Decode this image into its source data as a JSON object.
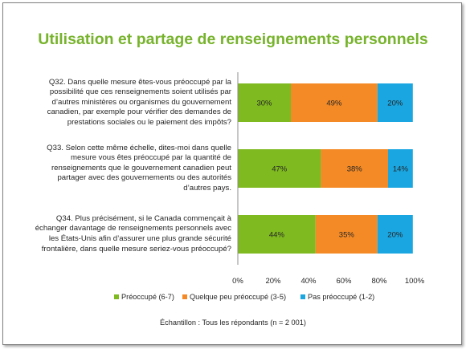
{
  "title": "Utilisation et partage de renseignements personnels",
  "footer": "Échantillon : Tous les répondants (n = 2 001)",
  "colors": {
    "preoccupe": "#7fba20",
    "quelque": "#f48a26",
    "pas": "#1aa6e1",
    "title": "#77b32c"
  },
  "chart_data": {
    "type": "bar",
    "orientation": "horizontal",
    "stacked": true,
    "categories": [
      "Q32. Dans quelle mesure êtes-vous préoccupé par la possibilité que ces renseignements soient utilisés par d’autres ministères ou organismes du gouvernement canadien, par exemple pour vérifier des demandes de prestations sociales ou le paiement des impôts?",
      "Q33. Selon cette même échelle, dites-moi dans quelle mesure vous êtes préoccupé par la quantité de renseignements que le gouvernement canadien peut partager avec des gouvernements ou des autorités d’autres pays.",
      "Q34. Plus précisément, si le Canada commençait à échanger davantage de renseignements personnels avec les États-Unis afin d’assurer une plus grande sécurité frontalière, dans quelle mesure seriez-vous préoccupé?"
    ],
    "question_lines": [
      [
        "Q32. Dans quelle mesure êtes-vous préoccupé par la",
        "possibilité que ces renseignements soient utilisés par",
        "d’autres ministères ou organismes du gouvernement",
        "canadien, par exemple pour vérifier des demandes de",
        "prestations sociales ou le paiement des impôts?"
      ],
      [
        "Q33. Selon cette même échelle, dites-moi dans quelle",
        "mesure vous êtes préoccupé par la quantité de",
        "renseignements que le gouvernement canadien peut",
        "partager avec des gouvernements ou des autorités",
        "d’autres pays."
      ],
      [
        "Q34. Plus précisément, si le Canada commençait à",
        "échanger davantage de renseignements personnels avec",
        "les États-Unis afin d’assurer une plus grande sécurité",
        "frontalière, dans quelle mesure seriez-vous préoccupé?"
      ]
    ],
    "series": [
      {
        "name": "Préoccupé (6-7)",
        "values": [
          30,
          47,
          44
        ],
        "labels": [
          "30%",
          "47%",
          "44%"
        ]
      },
      {
        "name": "Quelque peu préoccupé (3-5)",
        "values": [
          49,
          38,
          35
        ],
        "labels": [
          "49%",
          "38%",
          "35%"
        ]
      },
      {
        "name": "Pas préoccupé (1-2)",
        "values": [
          20,
          14,
          20
        ],
        "labels": [
          "20%",
          "14%",
          "20%"
        ]
      }
    ],
    "xlim": [
      0,
      100
    ],
    "xticks": [
      "0%",
      "20%",
      "40%",
      "60%",
      "80%",
      "100%"
    ],
    "legend": "bottom",
    "grid": false
  }
}
